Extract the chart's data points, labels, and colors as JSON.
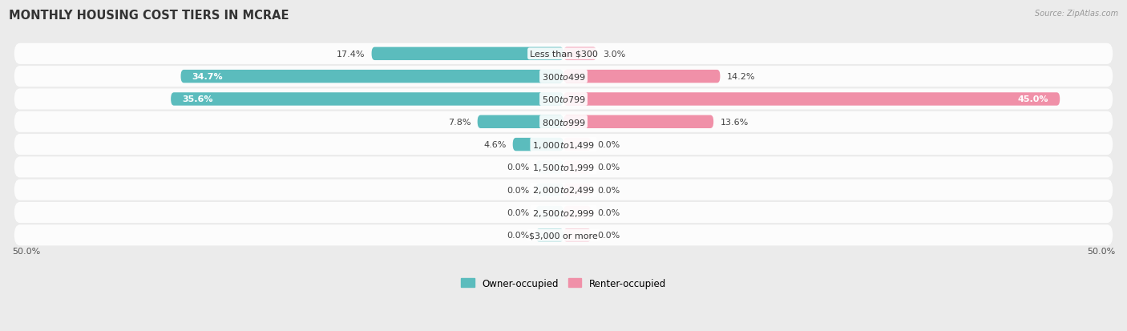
{
  "title": "MONTHLY HOUSING COST TIERS IN MCRAE",
  "source": "Source: ZipAtlas.com",
  "categories": [
    "Less than $300",
    "$300 to $499",
    "$500 to $799",
    "$800 to $999",
    "$1,000 to $1,499",
    "$1,500 to $1,999",
    "$2,000 to $2,499",
    "$2,500 to $2,999",
    "$3,000 or more"
  ],
  "owner_values": [
    17.4,
    34.7,
    35.6,
    7.8,
    4.6,
    0.0,
    0.0,
    0.0,
    0.0
  ],
  "renter_values": [
    3.0,
    14.2,
    45.0,
    13.6,
    0.0,
    0.0,
    0.0,
    0.0,
    0.0
  ],
  "owner_color": "#5bbcbd",
  "renter_color": "#f090a8",
  "bg_color": "#ebebeb",
  "row_bg_light": "#f8f8f8",
  "row_bg_dark": "#e8e8e8",
  "max_value": 50.0,
  "title_fontsize": 10.5,
  "label_fontsize": 8.0,
  "category_fontsize": 8.0,
  "legend_fontsize": 8.5,
  "axis_label_fontsize": 8,
  "bar_height": 0.58,
  "stub_size": 2.5
}
